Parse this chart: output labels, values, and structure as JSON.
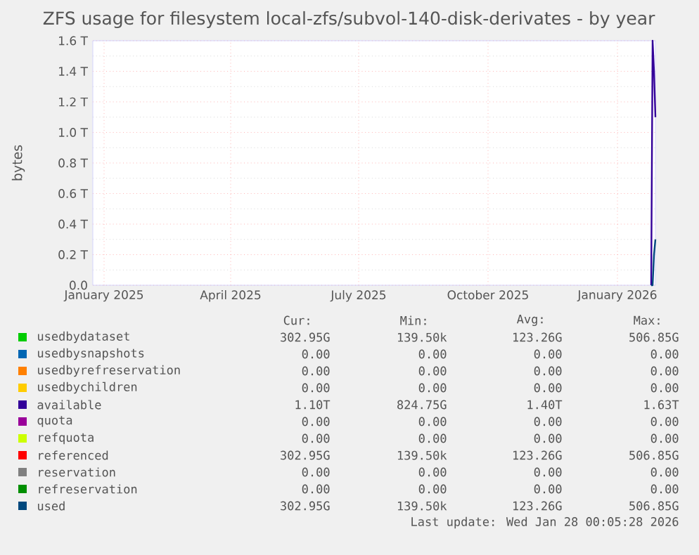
{
  "chart_data": {
    "type": "line",
    "title": "ZFS usage for filesystem local-zfs/subvol-140-disk-derivates - by year",
    "ylabel": "bytes",
    "x": [
      "2026-01-25",
      "2026-01-26",
      "2026-01-27",
      "2026-01-28"
    ],
    "xlim": [
      "2024-12-24",
      "2026-01-28"
    ],
    "xticks": [
      {
        "value": "2025-01-01",
        "label": "January 2025"
      },
      {
        "value": "2025-04-01",
        "label": "April 2025"
      },
      {
        "value": "2025-07-01",
        "label": "July 2025"
      },
      {
        "value": "2025-10-01",
        "label": "October 2025"
      },
      {
        "value": "2026-01-01",
        "label": "January 2026"
      }
    ],
    "ylim": [
      0,
      1.6
    ],
    "yticks": [
      {
        "value": 0,
        "label": "0.0"
      },
      {
        "value": 0.2,
        "label": "0.2 T"
      },
      {
        "value": 0.4,
        "label": "0.4 T"
      },
      {
        "value": 0.6,
        "label": "0.6 T"
      },
      {
        "value": 0.8,
        "label": "0.8 T"
      },
      {
        "value": 1.0,
        "label": "1.0 T"
      },
      {
        "value": 1.2,
        "label": "1.2 T"
      },
      {
        "value": 1.4,
        "label": "1.4 T"
      },
      {
        "value": 1.6,
        "label": "1.6 T"
      }
    ],
    "grid": true,
    "legend": "bottom",
    "marker": "none",
    "series": [
      {
        "name": "usedbydataset",
        "color": "#00cc00",
        "values": [
          null,
          null,
          null,
          null
        ]
      },
      {
        "name": "usedbysnapshots",
        "color": "#0066b3",
        "values": [
          null,
          null,
          null,
          null
        ]
      },
      {
        "name": "usedbyrefreservation",
        "color": "#ff8000",
        "values": [
          null,
          null,
          null,
          null
        ]
      },
      {
        "name": "usedbychildren",
        "color": "#ffcc00",
        "values": [
          null,
          null,
          null,
          null
        ]
      },
      {
        "name": "available",
        "color": "#330099",
        "values": [
          0,
          1.6,
          1.4,
          1.1
        ]
      },
      {
        "name": "quota",
        "color": "#990099",
        "values": [
          null,
          null,
          null,
          null
        ]
      },
      {
        "name": "refquota",
        "color": "#ccff00",
        "values": [
          null,
          null,
          null,
          null
        ]
      },
      {
        "name": "referenced",
        "color": "#ff0000",
        "values": [
          null,
          null,
          null,
          null
        ]
      },
      {
        "name": "reservation",
        "color": "#808080",
        "values": [
          null,
          null,
          null,
          null
        ]
      },
      {
        "name": "refreservation",
        "color": "#008f00",
        "values": [
          null,
          null,
          null,
          null
        ]
      },
      {
        "name": "used",
        "color": "#00487d",
        "values": [
          0,
          0,
          0.2,
          0.3
        ]
      }
    ],
    "annotations": [
      "Cur:",
      "Min:",
      "Avg:",
      "Max:",
      "302.95G",
      "139.50k",
      "123.26G",
      "506.85G",
      "0.00",
      "0.00",
      "0.00",
      "0.00",
      "0.00",
      "0.00",
      "0.00",
      "0.00",
      "0.00",
      "0.00",
      "0.00",
      "0.00",
      "1.10T",
      "824.75G",
      "1.40T",
      "1.63T",
      "0.00",
      "0.00",
      "0.00",
      "0.00",
      "0.00",
      "0.00",
      "0.00",
      "0.00",
      "302.95G",
      "139.50k",
      "123.26G",
      "506.85G",
      "0.00",
      "0.00",
      "0.00",
      "0.00",
      "0.00",
      "0.00",
      "0.00",
      "0.00",
      "302.95G",
      "139.50k",
      "123.26G",
      "506.85G",
      "Last update: Wed Jan 28 00:05:28 2026"
    ]
  }
}
